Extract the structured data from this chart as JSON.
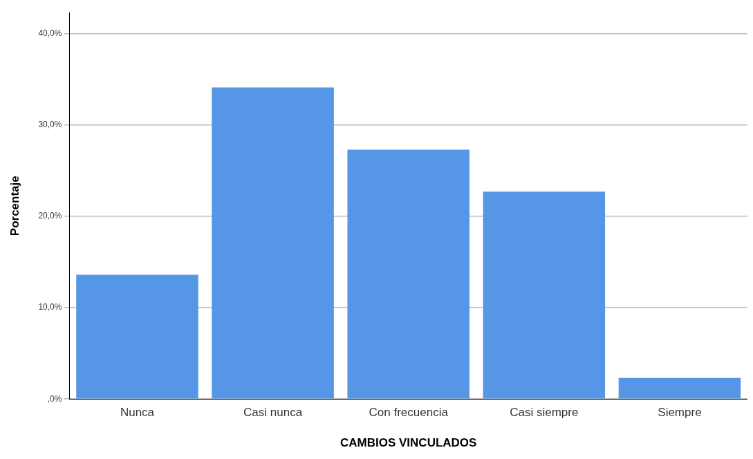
{
  "chart_data": {
    "type": "bar",
    "xlabel": "CAMBIOS VINCULADOS",
    "ylabel": "Porcentaje",
    "categories": [
      "Nunca",
      "Casi nunca",
      "Con frecuencia",
      "Casi siempre",
      "Siempre"
    ],
    "values": [
      13.6,
      34.1,
      27.3,
      22.7,
      2.3
    ],
    "color": "#5596e6",
    "ylim": [
      0,
      42.3
    ],
    "yticks": [
      {
        "value": 0,
        "label": ",0%"
      },
      {
        "value": 10,
        "label": "10,0%"
      },
      {
        "value": 20,
        "label": "20,0%"
      },
      {
        "value": 30,
        "label": "30,0%"
      },
      {
        "value": 40,
        "label": "40,0%"
      }
    ],
    "grid": "y",
    "legend": false
  }
}
